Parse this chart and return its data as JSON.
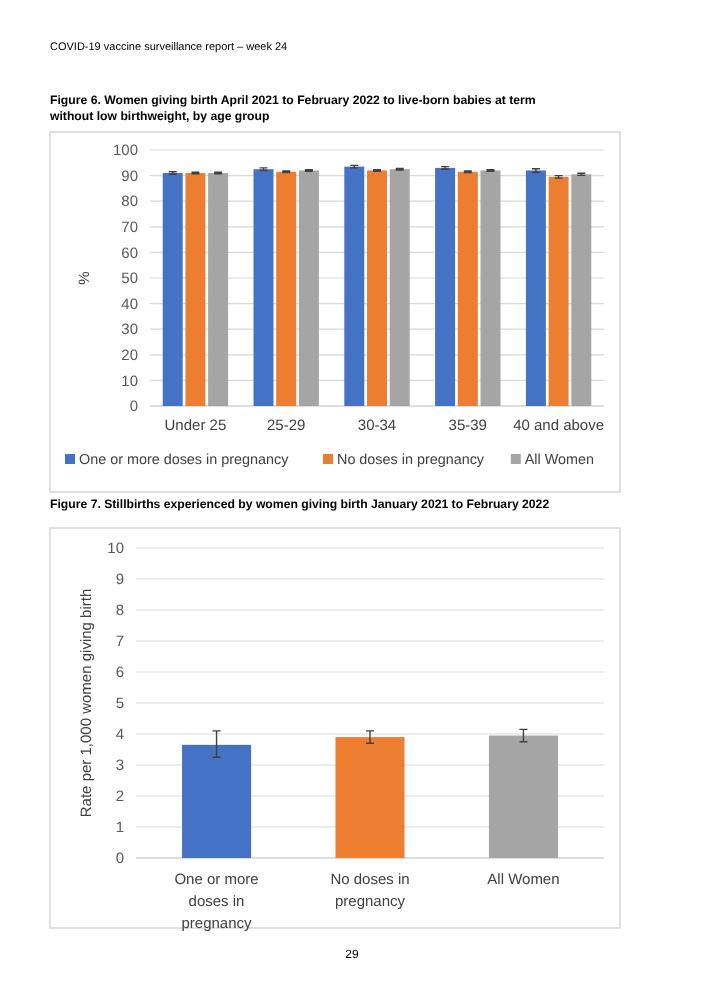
{
  "chart_data": [
    {
      "type": "bar",
      "title": "Figure 6. Women giving birth April 2021 to February 2022 to live-born babies at term without low birthweight, by age group",
      "ylabel": "%",
      "categories": [
        "Under 25",
        "25-29",
        "30-34",
        "35-39",
        "40 and above"
      ],
      "series": [
        {
          "name": "One or more doses in pregnancy",
          "color": "#4472c4",
          "values": [
            91,
            92.5,
            93.5,
            93,
            92
          ],
          "errors": [
            0.5,
            0.5,
            0.5,
            0.5,
            0.7
          ]
        },
        {
          "name": "No doses in pregnancy",
          "color": "#ed7d31",
          "values": [
            91,
            91.5,
            92,
            91.5,
            89.5
          ],
          "errors": [
            0.3,
            0.3,
            0.3,
            0.3,
            0.5
          ]
        },
        {
          "name": "All Women",
          "color": "#a5a5a5",
          "values": [
            91,
            92,
            92.5,
            92,
            90.5
          ],
          "errors": [
            0.3,
            0.3,
            0.3,
            0.3,
            0.4
          ]
        }
      ],
      "ylim": [
        0,
        100
      ],
      "yticks": [
        0,
        10,
        20,
        30,
        40,
        50,
        60,
        70,
        80,
        90,
        100
      ],
      "grid": "y",
      "legend": "bottom",
      "annotations": [
        "COVID-19 vaccine surveillance report – week 24"
      ]
    },
    {
      "type": "bar",
      "title": "Figure 7. Stillbirths experienced by women giving birth January 2021 to February 2022",
      "ylabel": "Rate per 1,000 women giving birth",
      "categories": [
        "One or more doses in pregnancy",
        "No doses in pregnancy",
        "All Women"
      ],
      "values": [
        3.65,
        3.9,
        3.95
      ],
      "colors": [
        "#4472c4",
        "#ed7d31",
        "#a5a5a5"
      ],
      "errors": [
        [
          3.25,
          4.1
        ],
        [
          3.7,
          4.1
        ],
        [
          3.75,
          4.15
        ]
      ],
      "ylim": [
        0,
        10
      ],
      "yticks": [
        0,
        1,
        2,
        3,
        4,
        5,
        6,
        7,
        8,
        9,
        10
      ],
      "grid": "y",
      "annotations": [
        "29"
      ]
    }
  ]
}
